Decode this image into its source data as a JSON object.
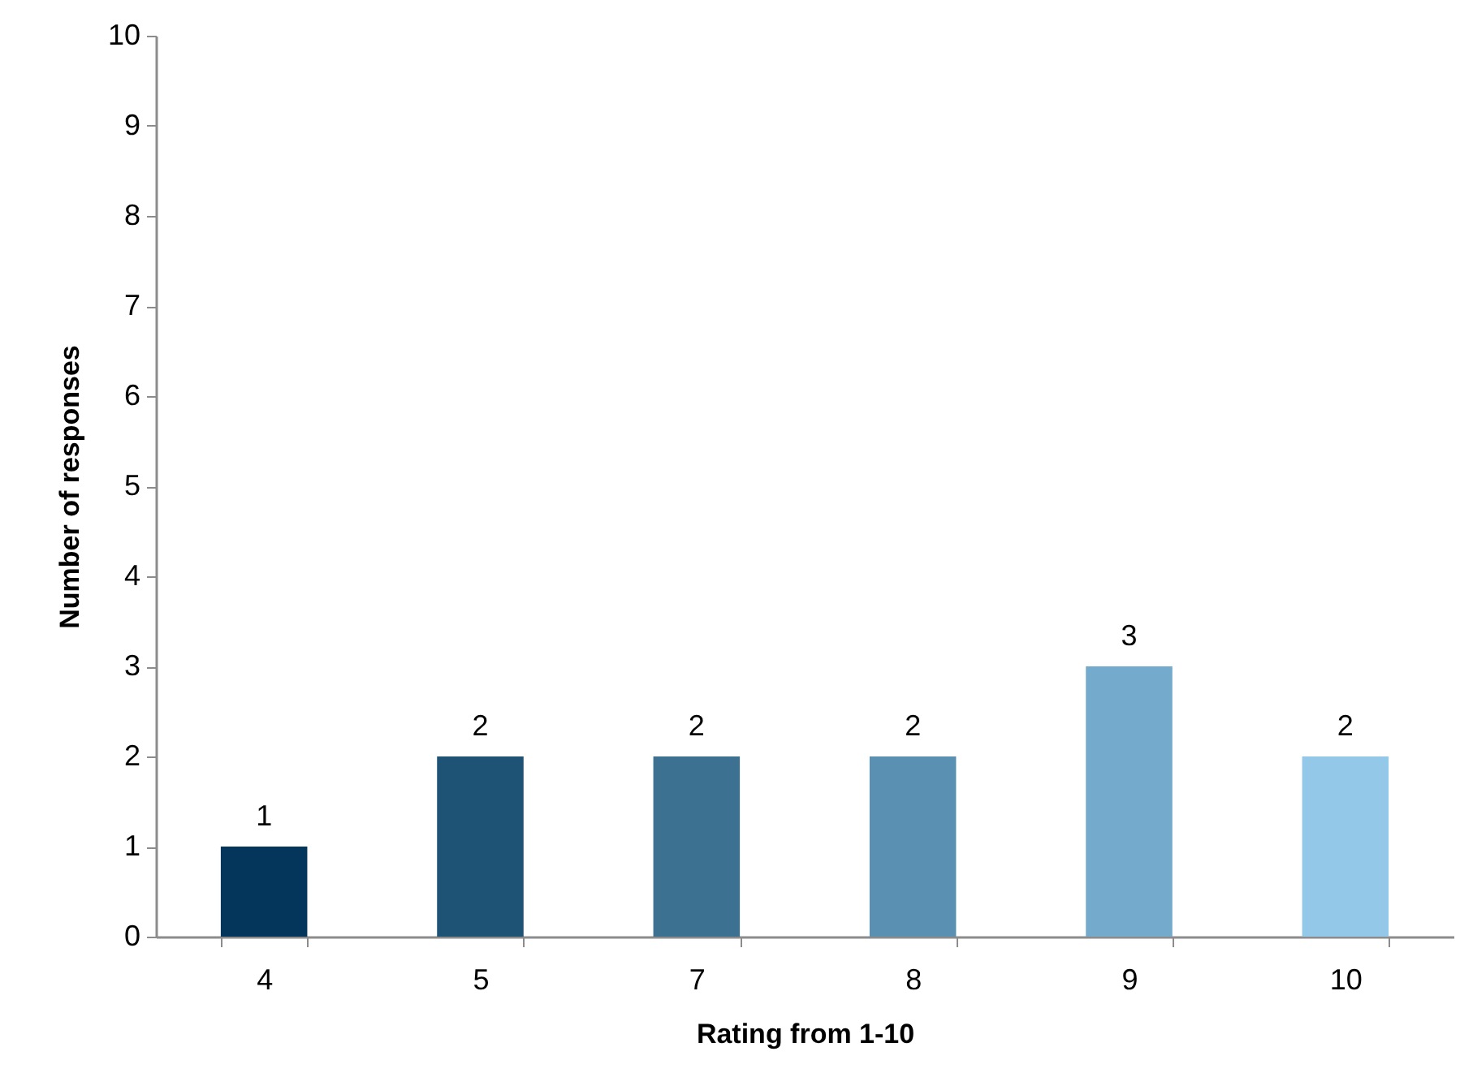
{
  "chart_data": {
    "type": "bar",
    "xlabel": "Rating from 1-10",
    "ylabel": "Number of responses",
    "categories": [
      "4",
      "5",
      "7",
      "8",
      "9",
      "10"
    ],
    "values": [
      1,
      2,
      2,
      2,
      3,
      2
    ],
    "colors": [
      "#03365a",
      "#1f5375",
      "#3d7191",
      "#5a90b1",
      "#74aacb",
      "#93c8e8"
    ],
    "ylim": [
      0,
      10
    ],
    "yticks": [
      0,
      1,
      2,
      3,
      4,
      5,
      6,
      7,
      8,
      9,
      10
    ],
    "grid": false,
    "legend": false,
    "data_labels": true
  }
}
